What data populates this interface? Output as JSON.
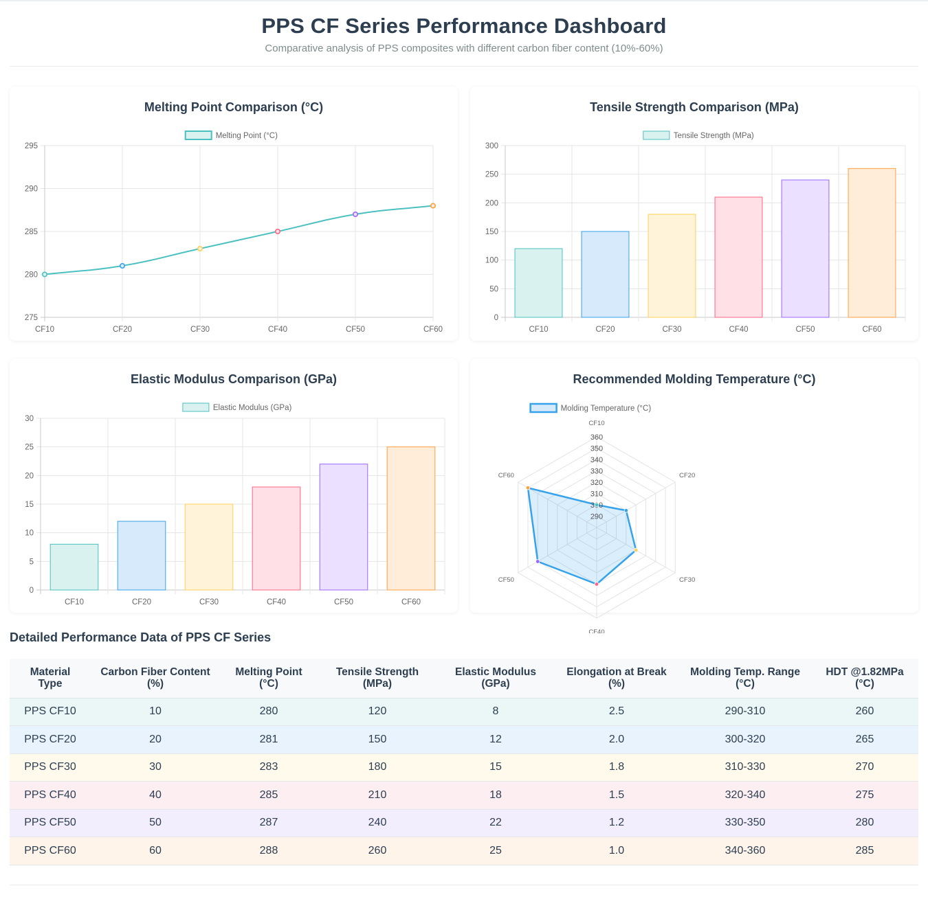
{
  "header": {
    "title": "PPS CF Series Performance Dashboard",
    "subtitle": "Comparative analysis of PPS composites with different carbon fiber content (10%-60%)"
  },
  "colors": {
    "series_stroke": [
      "#4bc0c0",
      "#36a2eb",
      "#ffce56",
      "#ff6384",
      "#9966ff",
      "#ff9f40"
    ],
    "series_fill": [
      "#d9f2f0",
      "#d7eafb",
      "#fff4d9",
      "#ffe0e6",
      "#ebe0ff",
      "#ffecd9"
    ],
    "row_bg": [
      "#eaf7f6",
      "#e8f3fd",
      "#fffaec",
      "#fdeef2",
      "#f3eefe",
      "#fef4ea"
    ]
  },
  "chart_data": [
    {
      "id": "melting",
      "type": "line",
      "title": "Melting Point Comparison (°C)",
      "legend": "Melting Point (°C)",
      "categories": [
        "CF10",
        "CF20",
        "CF30",
        "CF40",
        "CF50",
        "CF60"
      ],
      "values": [
        280,
        281,
        283,
        285,
        287,
        288
      ],
      "ylim": [
        275,
        295
      ],
      "yticks": [
        275,
        280,
        285,
        290,
        295
      ]
    },
    {
      "id": "tensile",
      "type": "bar",
      "title": "Tensile Strength Comparison (MPa)",
      "legend": "Tensile Strength (MPa)",
      "categories": [
        "CF10",
        "CF20",
        "CF30",
        "CF40",
        "CF50",
        "CF60"
      ],
      "values": [
        120,
        150,
        180,
        210,
        240,
        260
      ],
      "ylim": [
        0,
        300
      ],
      "yticks": [
        0,
        50,
        100,
        150,
        200,
        250,
        300
      ]
    },
    {
      "id": "modulus",
      "type": "bar",
      "title": "Elastic Modulus Comparison (GPa)",
      "legend": "Elastic Modulus (GPa)",
      "categories": [
        "CF10",
        "CF20",
        "CF30",
        "CF40",
        "CF50",
        "CF60"
      ],
      "values": [
        8,
        12,
        15,
        18,
        22,
        25
      ],
      "ylim": [
        0,
        30
      ],
      "yticks": [
        0,
        5,
        10,
        15,
        20,
        25,
        30
      ]
    },
    {
      "id": "molding",
      "type": "radar",
      "title": "Recommended Molding Temperature (°C)",
      "legend": "Molding Temperature (°C)",
      "categories": [
        "CF10",
        "CF20",
        "CF30",
        "CF40",
        "CF50",
        "CF60"
      ],
      "values": [
        300,
        310,
        320,
        330,
        340,
        350
      ],
      "rlim": [
        280,
        360
      ],
      "rticks": [
        290,
        300,
        310,
        320,
        330,
        340,
        350,
        360
      ]
    }
  ],
  "table": {
    "title": "Detailed Performance Data of PPS CF Series",
    "headers": [
      [
        "Material",
        "Type"
      ],
      [
        "Carbon Fiber Content",
        "(%)"
      ],
      [
        "Melting Point",
        "(°C)"
      ],
      [
        "Tensile Strength",
        "(MPa)"
      ],
      [
        "Elastic Modulus",
        "(GPa)"
      ],
      [
        "Elongation at Break",
        "(%)"
      ],
      [
        "Molding Temp. Range",
        "(°C)"
      ],
      [
        "HDT @1.82MPa",
        "(°C)"
      ]
    ],
    "rows": [
      [
        "PPS CF10",
        "10",
        "280",
        "120",
        "8",
        "2.5",
        "290-310",
        "260"
      ],
      [
        "PPS CF20",
        "20",
        "281",
        "150",
        "12",
        "2.0",
        "300-320",
        "265"
      ],
      [
        "PPS CF30",
        "30",
        "283",
        "180",
        "15",
        "1.8",
        "310-330",
        "270"
      ],
      [
        "PPS CF40",
        "40",
        "285",
        "210",
        "18",
        "1.5",
        "320-340",
        "275"
      ],
      [
        "PPS CF50",
        "50",
        "287",
        "240",
        "22",
        "1.2",
        "330-350",
        "280"
      ],
      [
        "PPS CF60",
        "60",
        "288",
        "260",
        "25",
        "1.0",
        "340-360",
        "285"
      ]
    ]
  }
}
